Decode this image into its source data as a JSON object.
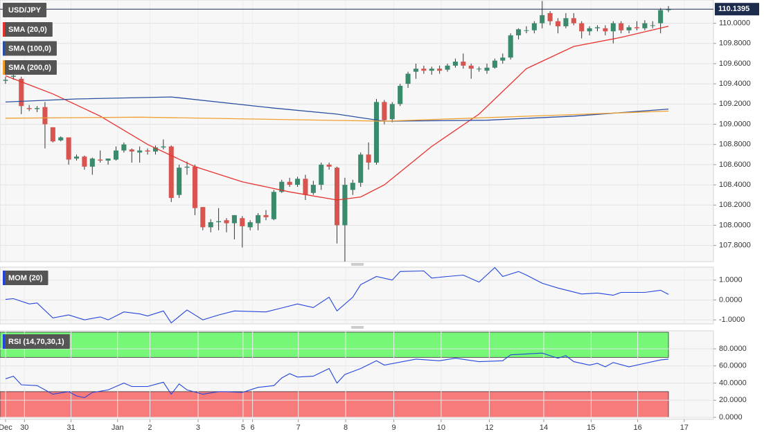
{
  "chart_data": [
    {
      "type": "candlestick",
      "name": "USD/JPY",
      "colors": {
        "up": "#3a8a6c",
        "down": "#d9534f",
        "wick": "#333333"
      },
      "last_price": 110.1395,
      "last_price_color": "#1d2c4c",
      "xlim": [
        -0.7,
        89.7
      ],
      "ylim": [
        107.64,
        110.23
      ],
      "yticks": [
        {
          "value": 107.8,
          "label": "107.8000"
        },
        {
          "value": 108.0,
          "label": "108.0000"
        },
        {
          "value": 108.2,
          "label": "108.2000"
        },
        {
          "value": 108.4,
          "label": "108.4000"
        },
        {
          "value": 108.6,
          "label": "108.6000"
        },
        {
          "value": 108.8,
          "label": "108.8000"
        },
        {
          "value": 109.0,
          "label": "109.0000"
        },
        {
          "value": 109.2,
          "label": "109.2000"
        },
        {
          "value": 109.4,
          "label": "109.4000"
        },
        {
          "value": 109.6,
          "label": "109.6000"
        },
        {
          "value": 109.8,
          "label": "109.8000"
        },
        {
          "value": 110.0,
          "label": "110.0000"
        }
      ],
      "grid": true,
      "x": [
        0,
        1,
        2,
        3,
        4,
        5,
        6,
        7,
        8,
        9,
        10,
        11,
        12,
        13,
        14,
        15,
        16,
        17,
        18,
        19,
        20,
        21,
        22,
        23,
        24,
        25,
        26,
        27,
        28,
        29,
        30,
        31,
        32,
        33,
        34,
        35,
        36,
        37,
        38,
        39,
        40,
        41,
        42,
        43,
        44,
        45,
        46,
        47,
        48,
        49,
        50,
        51,
        52,
        53,
        54,
        55,
        56,
        57,
        58,
        59,
        60,
        61,
        62,
        63,
        64,
        65,
        66,
        67,
        68,
        69,
        70,
        71,
        72,
        73,
        74,
        75,
        76,
        77,
        78,
        79,
        80,
        81,
        82,
        83,
        84
      ],
      "open": [
        109.43,
        109.47,
        109.45,
        109.16,
        109.15,
        109.17,
        108.97,
        108.84,
        108.87,
        108.66,
        108.68,
        108.58,
        108.65,
        108.64,
        108.65,
        108.74,
        108.75,
        108.72,
        108.74,
        108.73,
        108.77,
        108.78,
        108.3,
        108.57,
        108.58,
        108.18,
        107.98,
        108.03,
        108.05,
        108.02,
        108.07,
        107.98,
        108.02,
        108.1,
        108.06,
        108.33,
        108.43,
        108.4,
        108.46,
        108.32,
        108.4,
        108.6,
        108.57,
        108.0,
        108.35,
        108.42,
        108.7,
        108.62,
        109.22,
        109.05,
        109.2,
        109.4,
        109.52,
        109.55,
        109.53,
        109.55,
        109.54,
        109.58,
        109.62,
        109.58,
        109.55,
        109.53,
        109.56,
        109.63,
        109.66,
        109.88,
        109.93,
        109.93,
        110.0,
        110.1,
        110.02,
        109.97,
        110.05,
        110.0,
        109.92,
        109.95,
        109.95,
        109.92,
        110.0,
        109.93,
        109.96,
        109.95,
        109.98,
        110.0,
        110.13
      ],
      "high": [
        109.47,
        109.5,
        109.47,
        109.19,
        109.18,
        109.22,
        108.97,
        108.88,
        108.87,
        108.7,
        108.69,
        108.67,
        108.74,
        108.66,
        108.78,
        108.82,
        108.76,
        108.78,
        108.76,
        108.79,
        108.85,
        108.79,
        108.6,
        108.63,
        108.6,
        108.18,
        108.06,
        108.17,
        108.07,
        108.1,
        108.09,
        108.05,
        108.12,
        108.15,
        108.35,
        108.45,
        108.47,
        108.48,
        108.5,
        108.44,
        108.62,
        108.62,
        108.58,
        108.47,
        108.45,
        108.72,
        108.82,
        109.25,
        109.24,
        109.22,
        109.4,
        109.52,
        109.6,
        109.58,
        109.57,
        109.58,
        109.6,
        109.65,
        109.7,
        109.6,
        109.57,
        109.6,
        109.65,
        109.7,
        109.9,
        109.95,
        109.97,
        110.02,
        110.22,
        110.12,
        110.05,
        110.1,
        110.1,
        110.02,
        109.97,
        109.98,
        109.98,
        110.02,
        110.02,
        109.98,
        110.02,
        110.03,
        110.02,
        110.15,
        110.17
      ],
      "low": [
        109.4,
        109.44,
        109.1,
        109.13,
        109.12,
        108.76,
        108.82,
        108.83,
        108.6,
        108.64,
        108.55,
        108.5,
        108.62,
        108.6,
        108.64,
        108.72,
        108.62,
        108.62,
        108.7,
        108.7,
        108.75,
        108.23,
        108.27,
        108.5,
        108.1,
        107.95,
        107.93,
        107.95,
        107.93,
        107.86,
        107.78,
        107.95,
        107.95,
        108.05,
        108.05,
        108.32,
        108.38,
        108.38,
        108.25,
        108.3,
        108.35,
        108.55,
        107.82,
        107.64,
        108.3,
        108.38,
        108.55,
        108.6,
        109.0,
        109.02,
        109.18,
        109.36,
        109.45,
        109.5,
        109.49,
        109.5,
        109.52,
        109.56,
        109.55,
        109.45,
        109.52,
        109.5,
        109.55,
        109.6,
        109.64,
        109.84,
        109.9,
        109.9,
        109.95,
        109.98,
        109.9,
        109.95,
        109.98,
        109.85,
        109.88,
        109.92,
        109.88,
        109.8,
        109.9,
        109.9,
        109.93,
        109.93,
        109.95,
        109.9,
        110.11
      ],
      "close": [
        109.44,
        109.48,
        109.18,
        109.15,
        109.16,
        109.0,
        108.83,
        108.87,
        108.65,
        108.68,
        108.58,
        108.66,
        108.64,
        108.66,
        108.74,
        108.8,
        108.73,
        108.74,
        108.73,
        108.77,
        108.78,
        108.27,
        108.57,
        108.58,
        108.17,
        107.98,
        108.03,
        108.04,
        108.02,
        108.1,
        107.99,
        108.03,
        108.1,
        108.08,
        108.33,
        108.43,
        108.4,
        108.46,
        108.3,
        108.4,
        108.6,
        108.58,
        108.0,
        108.4,
        108.42,
        108.7,
        108.62,
        109.22,
        109.04,
        109.2,
        109.38,
        109.5,
        109.55,
        109.53,
        109.55,
        109.53,
        109.58,
        109.62,
        109.58,
        109.55,
        109.55,
        109.56,
        109.63,
        109.66,
        109.88,
        109.94,
        109.93,
        110.0,
        110.08,
        110.02,
        109.97,
        110.05,
        110.0,
        109.92,
        109.95,
        109.96,
        109.92,
        110.0,
        109.93,
        109.96,
        109.95,
        110.0,
        109.98,
        110.13,
        110.14
      ],
      "overlays": [
        {
          "name": "SMA (20,0)",
          "color": "#e8322e",
          "x": [
            0,
            6,
            12,
            18,
            24,
            30,
            36,
            42,
            45,
            48,
            54,
            60,
            66,
            72,
            78,
            84
          ],
          "values": [
            109.48,
            109.3,
            109.08,
            108.8,
            108.58,
            108.43,
            108.33,
            108.25,
            108.28,
            108.4,
            108.78,
            109.1,
            109.55,
            109.77,
            109.86,
            109.97
          ]
        },
        {
          "name": "SMA (100,0)",
          "color": "#2a4fa0",
          "x": [
            0,
            9,
            21,
            34,
            42,
            48,
            61,
            72,
            84
          ],
          "values": [
            109.22,
            109.25,
            109.27,
            109.16,
            109.1,
            109.03,
            109.04,
            109.08,
            109.15
          ]
        },
        {
          "name": "SMA (200,0)",
          "color": "#f0a030",
          "x": [
            0,
            17,
            48,
            70,
            84
          ],
          "values": [
            109.06,
            109.07,
            109.03,
            109.09,
            109.13
          ]
        }
      ]
    },
    {
      "type": "line",
      "xlim": [
        -0.7,
        89.7
      ],
      "ylim": [
        -1.2,
        1.65
      ],
      "yticks": [
        {
          "value": -1,
          "label": "-1.0000"
        },
        {
          "value": 0,
          "label": "0.0000"
        },
        {
          "value": 1,
          "label": "1.0000"
        }
      ],
      "grid": true,
      "series": [
        {
          "name": "MOM (20)",
          "color": "#2244dd",
          "x": [
            0,
            1,
            3,
            4,
            6,
            8,
            10,
            12,
            13,
            15,
            17,
            18,
            20,
            21,
            23,
            25,
            27,
            29,
            33,
            35,
            37,
            39,
            41,
            42,
            44,
            45,
            47,
            49,
            50,
            53,
            54,
            56,
            58,
            60,
            62,
            63,
            65,
            66,
            68,
            70,
            73,
            75,
            77,
            78,
            81,
            83,
            84
          ],
          "values": [
            0.03,
            0.07,
            -0.2,
            -0.15,
            -0.9,
            -0.75,
            -1.0,
            -0.85,
            -1.0,
            -0.6,
            -0.7,
            -0.8,
            -0.55,
            -1.15,
            -0.5,
            -1.0,
            -0.75,
            -0.55,
            -0.6,
            -0.4,
            -0.2,
            -0.38,
            0.14,
            -0.55,
            0.14,
            0.77,
            1.18,
            1.0,
            1.43,
            1.46,
            1.1,
            1.18,
            1.25,
            0.9,
            1.63,
            1.18,
            1.43,
            1.25,
            0.84,
            0.6,
            0.3,
            0.35,
            0.24,
            0.38,
            0.38,
            0.49,
            0.28
          ]
        }
      ]
    },
    {
      "type": "line",
      "xlim": [
        -0.7,
        89.7
      ],
      "ylim": [
        -2.4,
        101
      ],
      "yticks": [
        {
          "value": 0,
          "label": "0.0000"
        },
        {
          "value": 20,
          "label": "20.0000"
        },
        {
          "value": 40,
          "label": "40.0000"
        },
        {
          "value": 60,
          "label": "60.0000"
        },
        {
          "value": 80,
          "label": "80.0000"
        }
      ],
      "grid": true,
      "overbought": 70,
      "oversold": 30,
      "overbought_color": "#77f777",
      "oversold_color": "#f77b7b",
      "xticks": [
        {
          "value": 0,
          "label": "Dec"
        },
        {
          "value": 2.4,
          "label": "30"
        },
        {
          "value": 8.3,
          "label": "31"
        },
        {
          "value": 14.2,
          "label": "Jan"
        },
        {
          "value": 18.3,
          "label": "2"
        },
        {
          "value": 24.4,
          "label": "3"
        },
        {
          "value": 30.1,
          "label": "5"
        },
        {
          "value": 31.3,
          "label": "6"
        },
        {
          "value": 37.1,
          "label": "7"
        },
        {
          "value": 43.1,
          "label": "8"
        },
        {
          "value": 49.2,
          "label": "9"
        },
        {
          "value": 55.2,
          "label": "10"
        },
        {
          "value": 61.3,
          "label": "12"
        },
        {
          "value": 68.2,
          "label": "14"
        },
        {
          "value": 74.2,
          "label": "15"
        },
        {
          "value": 80.1,
          "label": "16"
        },
        {
          "value": 86.0,
          "label": "17"
        }
      ],
      "series": [
        {
          "name": "RSI (14,70,30,1)",
          "color": "#2244dd",
          "x": [
            0,
            1,
            2,
            4,
            6,
            8,
            9,
            10,
            11,
            13,
            15,
            16,
            18,
            20,
            21,
            22,
            23,
            25,
            27,
            28,
            30,
            32,
            34,
            35,
            36,
            37,
            39,
            41,
            42,
            43,
            45,
            47,
            48,
            52,
            55,
            57,
            60,
            63,
            64,
            68,
            70,
            71,
            72,
            74,
            75,
            76,
            77,
            79,
            81,
            83,
            84
          ],
          "values": [
            45,
            48,
            38,
            37,
            27,
            30,
            25,
            23,
            29,
            32,
            40,
            36,
            36,
            41,
            27,
            39,
            32,
            27,
            30,
            30,
            29,
            35,
            37,
            46,
            51,
            47,
            48,
            57,
            40,
            50,
            57,
            66,
            61,
            68,
            66,
            69,
            65,
            66,
            73,
            75,
            69,
            72,
            65,
            61,
            63,
            59,
            64,
            59,
            63,
            67,
            68
          ]
        }
      ]
    }
  ]
}
